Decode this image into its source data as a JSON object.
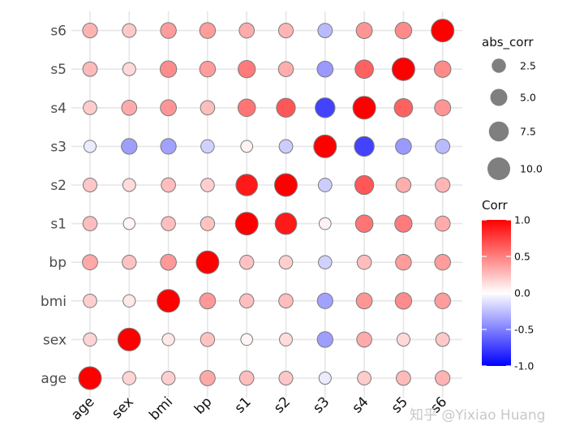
{
  "chart_data": {
    "type": "heatmap",
    "variables": [
      "age",
      "sex",
      "bmi",
      "bp",
      "s1",
      "s2",
      "s3",
      "s4",
      "s5",
      "s6"
    ],
    "matrix": [
      [
        1.0,
        0.17,
        0.19,
        0.34,
        0.26,
        0.22,
        -0.08,
        0.2,
        0.27,
        0.3
      ],
      [
        0.17,
        1.0,
        0.09,
        0.24,
        0.04,
        0.14,
        -0.38,
        0.33,
        0.15,
        0.21
      ],
      [
        0.19,
        0.09,
        1.0,
        0.4,
        0.25,
        0.26,
        -0.37,
        0.41,
        0.45,
        0.39
      ],
      [
        0.34,
        0.24,
        0.4,
        1.0,
        0.24,
        0.19,
        -0.18,
        0.26,
        0.39,
        0.39
      ],
      [
        0.26,
        0.04,
        0.25,
        0.24,
        1.0,
        0.9,
        0.05,
        0.54,
        0.52,
        0.33
      ],
      [
        0.22,
        0.14,
        0.26,
        0.19,
        0.9,
        1.0,
        -0.2,
        0.66,
        0.32,
        0.29
      ],
      [
        -0.08,
        -0.38,
        -0.37,
        -0.18,
        0.05,
        -0.2,
        1.0,
        -0.74,
        -0.4,
        -0.27
      ],
      [
        0.2,
        0.33,
        0.41,
        0.26,
        0.54,
        0.66,
        -0.74,
        1.0,
        0.62,
        0.42
      ],
      [
        0.27,
        0.15,
        0.45,
        0.39,
        0.52,
        0.32,
        -0.4,
        0.62,
        1.0,
        0.46
      ],
      [
        0.3,
        0.21,
        0.39,
        0.39,
        0.33,
        0.29,
        -0.27,
        0.42,
        0.46,
        1.0
      ]
    ],
    "color_legend": {
      "title": "Corr",
      "ticks": [
        "1.0",
        "0.5",
        "0.0",
        "-0.5",
        "-1.0"
      ],
      "range": [
        -1,
        1
      ],
      "colors": {
        "low": "#0000ff",
        "mid": "#ffffff",
        "high": "#ff0000"
      }
    },
    "size_legend": {
      "title": "abs_corr",
      "labels": [
        "2.5",
        "5.0",
        "7.5",
        "10.0"
      ]
    },
    "legend_position": "right",
    "grid": true,
    "watermark": "知乎 @Yixiao Huang"
  }
}
